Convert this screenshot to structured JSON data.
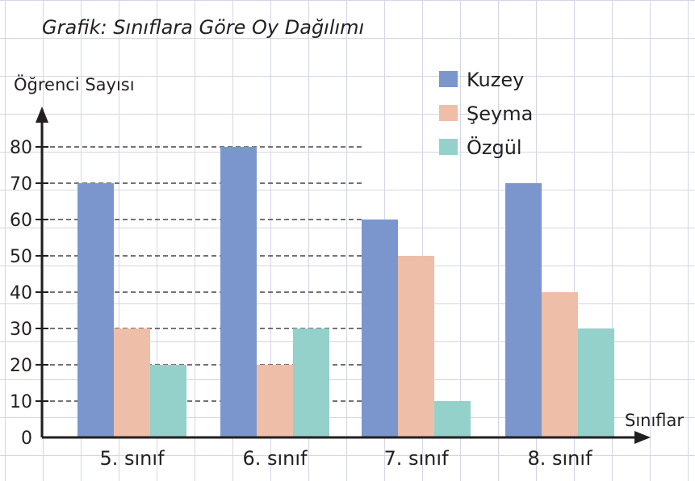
{
  "chart_data": {
    "type": "bar",
    "title": "Grafik: Sınıflara Göre Oy Dağılımı",
    "xlabel": "Sınıflar",
    "ylabel": "Öğrenci Sayısı",
    "ylim": [
      0,
      80
    ],
    "yticks": [
      0,
      10,
      20,
      30,
      40,
      50,
      60,
      70,
      80
    ],
    "categories": [
      "5. sınıf",
      "6. sınıf",
      "7. sınıf",
      "8. sınıf"
    ],
    "series": [
      {
        "name": "Kuzey",
        "color": "#7b96cc",
        "values": [
          70,
          80,
          60,
          70
        ]
      },
      {
        "name": "Şeyma",
        "color": "#efbea8",
        "values": [
          30,
          20,
          50,
          40
        ]
      },
      {
        "name": "Özgül",
        "color": "#93d1ca",
        "values": [
          20,
          30,
          10,
          30
        ]
      }
    ],
    "grid": "dashed horizontal",
    "legend_position": "top-right"
  }
}
